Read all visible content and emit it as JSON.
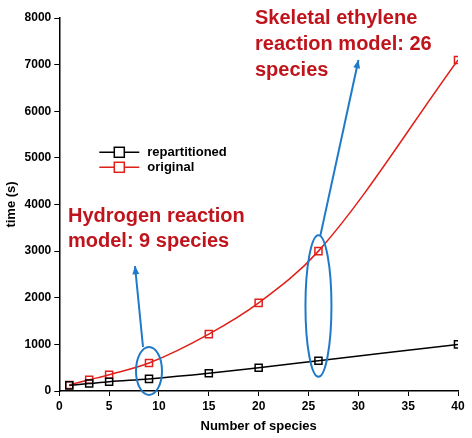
{
  "chart_data": {
    "type": "line",
    "x_label": "Number of species",
    "y_label": "time (s)",
    "x": [
      1,
      3,
      5,
      9,
      15,
      20,
      26,
      40
    ],
    "series": [
      {
        "name": "repartitioned",
        "color": "#000000",
        "marker": "square",
        "line_style": "solid",
        "values": [
          120,
          160,
          200,
          260,
          380,
          500,
          650,
          1000
        ]
      },
      {
        "name": "original",
        "color": "#e0201a",
        "marker": "square",
        "line_style": "solid",
        "values": [
          130,
          240,
          350,
          600,
          1220,
          1890,
          3000,
          7100
        ]
      }
    ],
    "xlim": [
      0,
      40
    ],
    "xticks": [
      0,
      5,
      10,
      15,
      20,
      25,
      30,
      35,
      40
    ],
    "ylim": [
      0,
      8000
    ],
    "yticks": [
      0,
      1000,
      2000,
      3000,
      4000,
      5000,
      6000,
      7000,
      8000
    ],
    "grid": false,
    "legend": "left",
    "annotations": [
      {
        "text": [
          "Hydrogen reaction",
          "model: 9 species"
        ],
        "x": 9
      },
      {
        "text": [
          "Skeletal ethylene",
          "reaction model: 26",
          "species"
        ],
        "x": 26
      }
    ]
  }
}
